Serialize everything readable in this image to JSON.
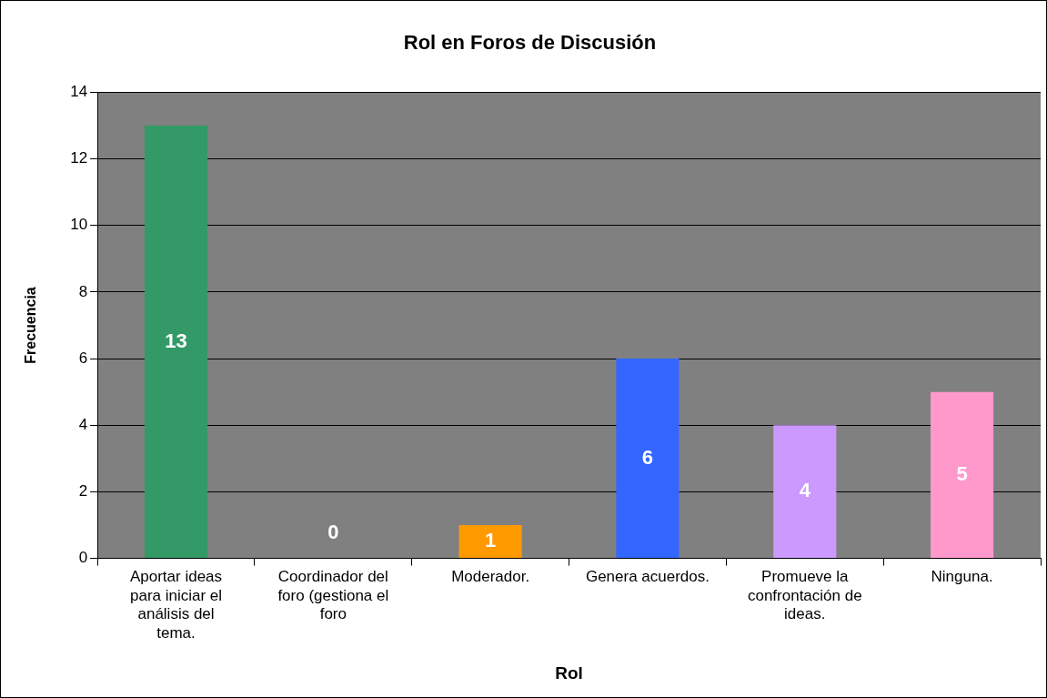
{
  "chart_data": {
    "type": "bar",
    "title": "Rol en Foros de Discusión",
    "xlabel": "Rol",
    "ylabel": "Frecuencia",
    "categories": [
      "Aportar ideas para iniciar el análisis del tema.",
      "Coordinador del foro (gestiona el foro",
      "Moderador.",
      "Genera acuerdos.",
      "Promueve la confrontación de ideas.",
      "Ninguna."
    ],
    "values": [
      13,
      0,
      1,
      6,
      4,
      5
    ],
    "colors": [
      "#339966",
      "#993366",
      "#ff9900",
      "#3366ff",
      "#cc99ff",
      "#ff99cc"
    ],
    "ylim": [
      0,
      14
    ],
    "yticks": [
      0,
      2,
      4,
      6,
      8,
      10,
      12,
      14
    ],
    "grid": "y",
    "legend": false,
    "data_labels": true
  }
}
